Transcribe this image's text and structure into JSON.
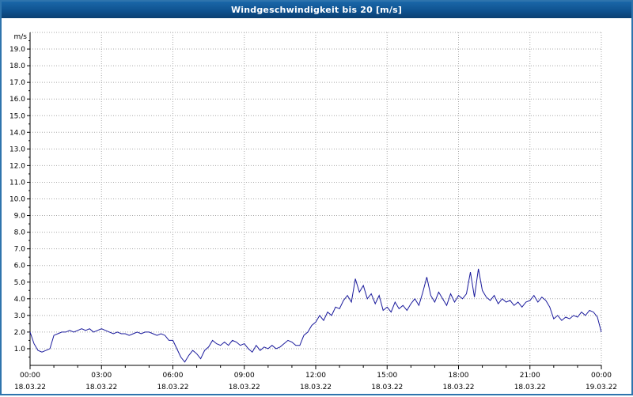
{
  "window": {
    "title": "Windgeschwindigkeit bis 20 [m/s]"
  },
  "colors": {
    "title_bar": "#0f5290",
    "frame_border": "#2e74ad",
    "line": "#1a1a9c",
    "grid": "#a8a8a8",
    "axis": "#000000",
    "plot_bg": "#ffffff"
  },
  "chart_data": {
    "type": "line",
    "title": "Windgeschwindigkeit bis 20 [m/s]",
    "ylabel": "m/s",
    "xlabel": "",
    "ylim": [
      0,
      20
    ],
    "xlim_hours": [
      0,
      24
    ],
    "grid": true,
    "legend": "none",
    "y_tick_labels": [
      "1.0",
      "2.0",
      "3.0",
      "4.0",
      "5.0",
      "6.0",
      "7.0",
      "8.0",
      "9.0",
      "10.0",
      "11.0",
      "12.0",
      "13.0",
      "14.0",
      "15.0",
      "16.0",
      "17.0",
      "18.0",
      "19.0"
    ],
    "x_ticks": [
      {
        "hour": 0,
        "time": "00:00",
        "date": "18.03.22"
      },
      {
        "hour": 3,
        "time": "03:00",
        "date": "18.03.22"
      },
      {
        "hour": 6,
        "time": "06:00",
        "date": "18.03.22"
      },
      {
        "hour": 9,
        "time": "09:00",
        "date": "18.03.22"
      },
      {
        "hour": 12,
        "time": "12:00",
        "date": "18.03.22"
      },
      {
        "hour": 15,
        "time": "15:00",
        "date": "18.03.22"
      },
      {
        "hour": 18,
        "time": "18:00",
        "date": "18.03.22"
      },
      {
        "hour": 21,
        "time": "21:00",
        "date": "18.03.22"
      },
      {
        "hour": 24,
        "time": "00:00",
        "date": "19.03.22"
      }
    ],
    "series": [
      {
        "name": "Windgeschwindigkeit",
        "unit": "m/s",
        "start_hour": 0,
        "step_minutes": 10,
        "values": [
          2.0,
          1.3,
          0.9,
          0.8,
          0.9,
          1.0,
          1.8,
          1.9,
          2.0,
          2.0,
          2.1,
          2.0,
          2.1,
          2.2,
          2.1,
          2.2,
          2.0,
          2.1,
          2.2,
          2.1,
          2.0,
          1.9,
          2.0,
          1.9,
          1.9,
          1.8,
          1.9,
          2.0,
          1.9,
          2.0,
          2.0,
          1.9,
          1.8,
          1.9,
          1.8,
          1.5,
          1.5,
          1.0,
          0.5,
          0.2,
          0.6,
          0.9,
          0.7,
          0.4,
          0.9,
          1.1,
          1.5,
          1.3,
          1.2,
          1.4,
          1.2,
          1.5,
          1.4,
          1.2,
          1.3,
          1.0,
          0.8,
          1.2,
          0.9,
          1.1,
          1.0,
          1.2,
          1.0,
          1.1,
          1.3,
          1.5,
          1.4,
          1.2,
          1.2,
          1.8,
          2.0,
          2.4,
          2.6,
          3.0,
          2.7,
          3.2,
          3.0,
          3.5,
          3.4,
          3.9,
          4.2,
          3.8,
          5.2,
          4.4,
          4.8,
          4.0,
          4.3,
          3.7,
          4.2,
          3.3,
          3.5,
          3.2,
          3.8,
          3.4,
          3.6,
          3.3,
          3.7,
          4.0,
          3.6,
          4.4,
          5.3,
          4.2,
          3.8,
          4.4,
          4.0,
          3.6,
          4.3,
          3.8,
          4.2,
          4.0,
          4.3,
          5.6,
          4.1,
          5.8,
          4.5,
          4.1,
          3.9,
          4.2,
          3.7,
          4.0,
          3.8,
          3.9,
          3.6,
          3.8,
          3.5,
          3.8,
          3.9,
          4.2,
          3.8,
          4.1,
          3.9,
          3.5,
          2.8,
          3.0,
          2.7,
          2.9,
          2.8,
          3.0,
          2.9,
          3.2,
          3.0,
          3.3,
          3.2,
          2.9,
          2.0
        ]
      }
    ]
  }
}
